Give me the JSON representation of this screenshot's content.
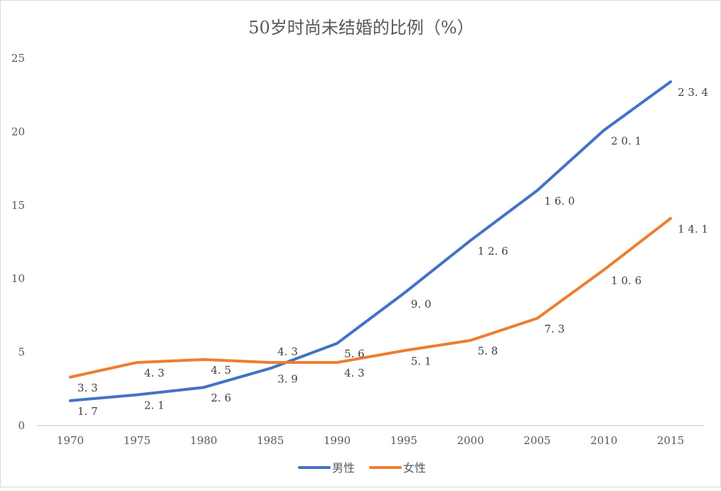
{
  "chart_data": {
    "type": "line",
    "title": "50岁时尚未结婚的比例（%）",
    "categories": [
      "1970",
      "1975",
      "1980",
      "1985",
      "1990",
      "1995",
      "2000",
      "2005",
      "2010",
      "2015"
    ],
    "series": [
      {
        "name": "男性",
        "color": "#4472c4",
        "values": [
          1.7,
          2.1,
          2.6,
          3.9,
          5.6,
          9.0,
          12.6,
          16.0,
          20.1,
          23.4
        ]
      },
      {
        "name": "女性",
        "color": "#ed7d31",
        "values": [
          3.3,
          4.3,
          4.5,
          4.3,
          4.3,
          5.1,
          5.8,
          7.3,
          10.6,
          14.1
        ]
      }
    ],
    "ylim": [
      0,
      25
    ],
    "yticks": [
      0,
      5,
      10,
      15,
      20,
      25
    ],
    "grid": false,
    "legend": "bottom",
    "data_labels": true,
    "label_decimals": 1
  }
}
